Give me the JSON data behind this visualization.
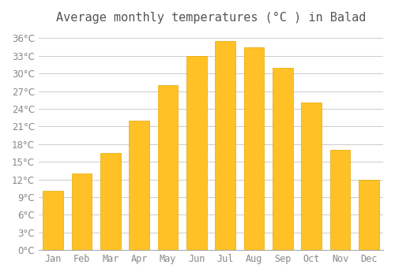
{
  "title": "Average monthly temperatures (°C ) in Balad",
  "months": [
    "Jan",
    "Feb",
    "Mar",
    "Apr",
    "May",
    "Jun",
    "Jul",
    "Aug",
    "Sep",
    "Oct",
    "Nov",
    "Dec"
  ],
  "values": [
    10.0,
    13.0,
    16.5,
    22.0,
    28.0,
    33.0,
    35.5,
    34.5,
    31.0,
    25.0,
    17.0,
    12.0
  ],
  "bar_color": "#FFC125",
  "bar_edge_color": "#E8A800",
  "background_color": "#FFFFFF",
  "grid_color": "#CCCCCC",
  "title_color": "#555555",
  "tick_label_color": "#888888",
  "ylim": [
    0,
    37
  ],
  "yticks": [
    0,
    3,
    6,
    9,
    12,
    15,
    18,
    21,
    24,
    27,
    30,
    33,
    36
  ],
  "title_fontsize": 11,
  "tick_fontsize": 8.5
}
